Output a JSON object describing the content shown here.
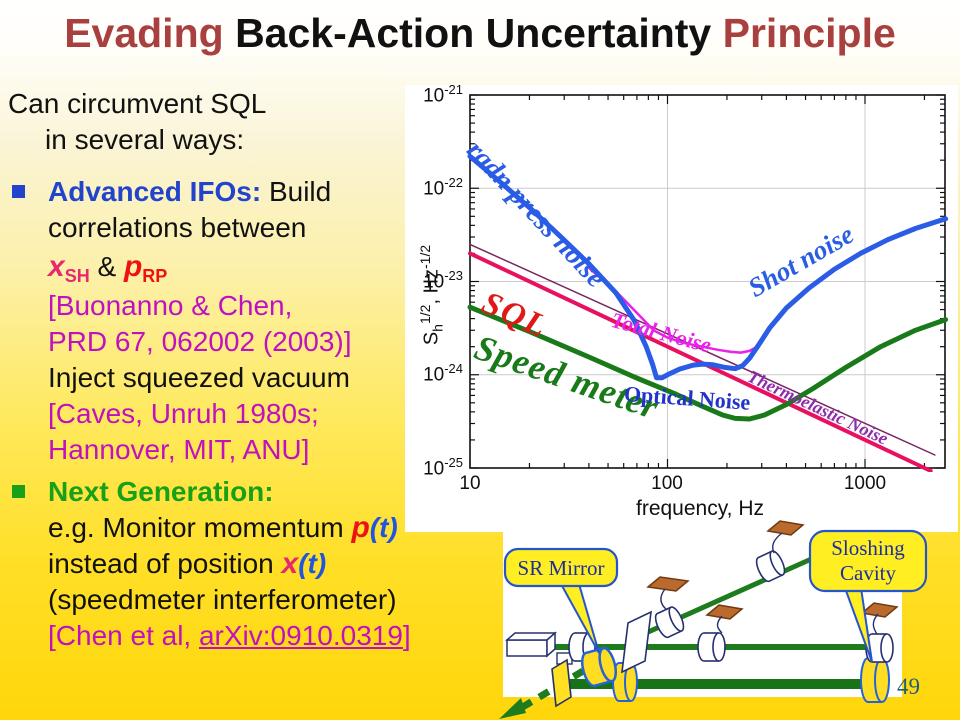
{
  "slide": {
    "title": {
      "part1": "Evading ",
      "part2": "Back-Action Uncertainty ",
      "part3": "Principle"
    },
    "page_number": "49"
  },
  "colors": {
    "title_red": "#a84040",
    "heading_blue": "#2244cc",
    "heading_green": "#18a018",
    "ref_magenta": "#c011c0",
    "x_pink": "#e8286e",
    "p_red": "#ee1111",
    "t_blue": "#2255dd",
    "page_teal": "#1d5f77",
    "callout_text_blue": "#1b2f9e"
  },
  "left_panel": {
    "line1": "Can circumvent SQL",
    "line2": "in several ways:",
    "b1_heading": "Advanced IFOs:",
    "b1_rest": " Build",
    "b1_line2": "correlations between",
    "formula": {
      "x": "x",
      "x_sub": "SH",
      "amp": " & ",
      "p": "p",
      "p_sub": "RP"
    },
    "ref1a": "[Buonanno & Chen,",
    "ref1b": "PRD 67, 062002 (2003)]",
    "inject": "Inject squeezed vacuum",
    "ref2a": "[Caves, Unruh 1980s;",
    "ref2b": "Hannover, MIT, ANU]",
    "b2_heading": "Next Generation:",
    "b2_l1a": "e.g. Monitor momentum ",
    "b2_l1_p": "p",
    "b2_l1_t": "(t)",
    "b2_l2a": "instead of position ",
    "b2_l2_x": "x",
    "b2_l2_t": "(t)",
    "b2_l3": "(speedmeter interferometer)",
    "ref3a": "[Chen et al, ",
    "ref3_link": "arXiv:0910.0319",
    "ref3b": "]"
  },
  "chart_data": {
    "type": "line",
    "title": "",
    "xlabel": "frequency, Hz",
    "ylabel": "Sh^1/2, Hz^-1/2",
    "xscale": "log",
    "yscale": "log",
    "xlim": [
      10,
      2560
    ],
    "ylim": [
      1e-25,
      1e-21
    ],
    "grid": true,
    "x_tick_labels": [
      "10",
      "100",
      "1000"
    ],
    "y_tick_base": "10",
    "y_tick_exponents": [
      "-21",
      "-22",
      "-23",
      "-24",
      "-25"
    ],
    "ylabel_parts": {
      "base": "S",
      "sub": "h",
      "sup": "1/2",
      "rest": ", Hz",
      "sup2": "-1/2"
    },
    "series": [
      {
        "name": "Thermoelastic Noise",
        "color": "#7a2560",
        "width": 1.5,
        "f": [
          10,
          2260
        ],
        "S": [
          2.5e-23,
          1.38e-25
        ]
      },
      {
        "name": "SQL",
        "color": "#e8115f",
        "width": 4,
        "f": [
          10,
          2150
        ],
        "S": [
          2e-23,
          9.3e-26
        ]
      },
      {
        "name": "Total Noise",
        "color": "#e822e8",
        "width": 2.5,
        "f": [
          40,
          55,
          70,
          85,
          100,
          120,
          150,
          180,
          210,
          235,
          260,
          285,
          310,
          330
        ],
        "S": [
          1.4e-23,
          7.8e-24,
          4.6e-24,
          3e-24,
          2.5e-24,
          2.2e-24,
          2e-24,
          1.85e-24,
          1.76e-24,
          1.73e-24,
          1.8e-24,
          2e-24,
          2.5e-24,
          3.2e-24
        ]
      },
      {
        "name": "Speed meter",
        "color": "#1a7a1a",
        "width": 5,
        "f": [
          10,
          20,
          40,
          70,
          110,
          150,
          190,
          220,
          260,
          310,
          400,
          550,
          800,
          1200,
          1800,
          2560
        ],
        "S": [
          5.3e-24,
          2.9e-24,
          1.55e-24,
          9.2e-25,
          6.2e-25,
          4.6e-25,
          3.7e-25,
          3.4e-25,
          3.35e-25,
          3.7e-25,
          4.8e-25,
          7.2e-25,
          1.2e-24,
          2e-24,
          3e-24,
          3.9e-24
        ]
      },
      {
        "name": "Optical Noise (radn press + shot)",
        "color": "#2a5ce6",
        "width": 5,
        "f": [
          10,
          14,
          20,
          28,
          40,
          55,
          68,
          78,
          84,
          88,
          94,
          100,
          115,
          135,
          150,
          170,
          195,
          220,
          240,
          260,
          290,
          330,
          400,
          520,
          700,
          950,
          1300,
          1800,
          2560
        ],
        "S": [
          2.2e-22,
          1.2e-22,
          6.2e-23,
          3.2e-23,
          1.55e-23,
          7.5e-24,
          3.8e-24,
          2e-24,
          1.3e-24,
          9.3e-25,
          9.3e-25,
          1e-24,
          1.15e-24,
          1.27e-24,
          1.3e-24,
          1.28e-24,
          1.2e-24,
          1.16e-24,
          1.25e-24,
          1.5e-24,
          2.1e-24,
          3.2e-24,
          5.2e-24,
          8.5e-24,
          1.35e-23,
          2e-23,
          2.8e-23,
          3.7e-23,
          4.7e-23
        ]
      }
    ],
    "annotations": [
      {
        "text": "radn press noise",
        "color": "#2a5ce6"
      },
      {
        "text": "Shot noise",
        "color": "#2a5ce6"
      },
      {
        "text": "SQL",
        "color": "#e01818"
      },
      {
        "text": "Speed meter",
        "color": "#1a7a1a"
      },
      {
        "text": "Total Noise",
        "color": "#e822e8"
      },
      {
        "text": "Optical Noise",
        "color": "#2233cc"
      },
      {
        "text": "Thermoelastic Noise",
        "color": "#8d2bad"
      }
    ]
  },
  "diagram": {
    "callout_sr": "SR Mirror",
    "callout_sloshing_line1": "Sloshing",
    "callout_sloshing_line2": "Cavity"
  }
}
